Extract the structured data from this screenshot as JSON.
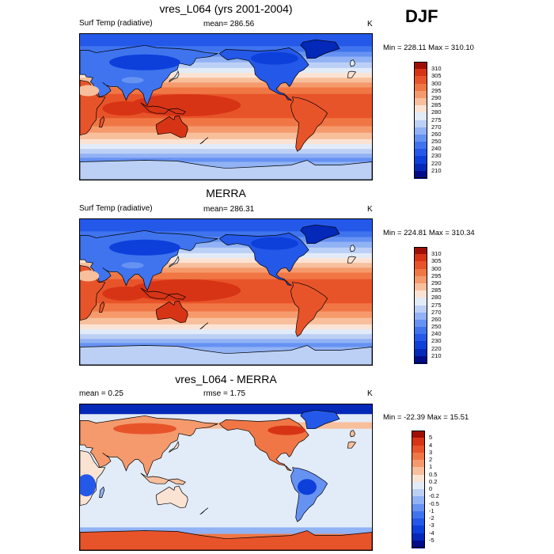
{
  "season": "DJF",
  "panels": [
    {
      "title": "vres_L064 (yrs 2001-2004)",
      "left": "Surf Temp (radiative)",
      "center": "mean= 286.56",
      "right": "K",
      "minmax": "Min = 228.11 Max = 310.10",
      "kind": "abs"
    },
    {
      "title": "MERRA",
      "left": "Surf Temp (radiative)",
      "center": "mean= 286.31",
      "right": "K",
      "minmax": "Min = 224.81 Max = 310.34",
      "kind": "abs"
    },
    {
      "title": "vres_L064 - MERRA",
      "left": "mean =   0.25",
      "center": "rmse =   1.75",
      "right": "K",
      "minmax": "Min = -22.39 Max =  15.51",
      "kind": "diff"
    }
  ],
  "chart_data": [
    {
      "type": "heatmap",
      "title": "vres_L064 (yrs 2001-2004)",
      "variable": "Surf Temp (radiative)",
      "units": "K",
      "mean": 286.56,
      "min": 228.11,
      "max": 310.1,
      "colorbar_levels": [
        210,
        220,
        230,
        240,
        250,
        260,
        270,
        275,
        280,
        285,
        290,
        295,
        300,
        305,
        310
      ],
      "colorbar_colors": [
        "#000c8a",
        "#0428b8",
        "#0d3fdb",
        "#2458e8",
        "#3f74ee",
        "#6692f2",
        "#91b2f4",
        "#bcd0f6",
        "#e2ebf8",
        "#fbe3d4",
        "#f8bf9c",
        "#f59a6c",
        "#f07745",
        "#e8542a",
        "#d73416",
        "#9e0f06"
      ]
    },
    {
      "type": "heatmap",
      "title": "MERRA",
      "variable": "Surf Temp (radiative)",
      "units": "K",
      "mean": 286.31,
      "min": 224.81,
      "max": 310.34,
      "colorbar_levels": [
        210,
        220,
        230,
        240,
        250,
        260,
        270,
        275,
        280,
        285,
        290,
        295,
        300,
        305,
        310
      ],
      "colorbar_colors": [
        "#000c8a",
        "#0428b8",
        "#0d3fdb",
        "#2458e8",
        "#3f74ee",
        "#6692f2",
        "#91b2f4",
        "#bcd0f6",
        "#e2ebf8",
        "#fbe3d4",
        "#f8bf9c",
        "#f59a6c",
        "#f07745",
        "#e8542a",
        "#d73416",
        "#9e0f06"
      ]
    },
    {
      "type": "heatmap",
      "title": "vres_L064 - MERRA",
      "units": "K",
      "mean": 0.25,
      "rmse": 1.75,
      "min": -22.39,
      "max": 15.51,
      "colorbar_levels": [
        -5,
        -4,
        -3,
        -2,
        -1,
        -0.5,
        -0.2,
        0,
        0.2,
        0.5,
        1,
        2,
        3,
        4,
        5
      ],
      "colorbar_colors": [
        "#000c8a",
        "#0428b8",
        "#0d3fdb",
        "#2458e8",
        "#3f74ee",
        "#6692f2",
        "#91b2f4",
        "#bcd0f6",
        "#e2ebf8",
        "#fbe3d4",
        "#f8bf9c",
        "#f59a6c",
        "#f07745",
        "#e8542a",
        "#d73416",
        "#9e0f06"
      ]
    }
  ]
}
